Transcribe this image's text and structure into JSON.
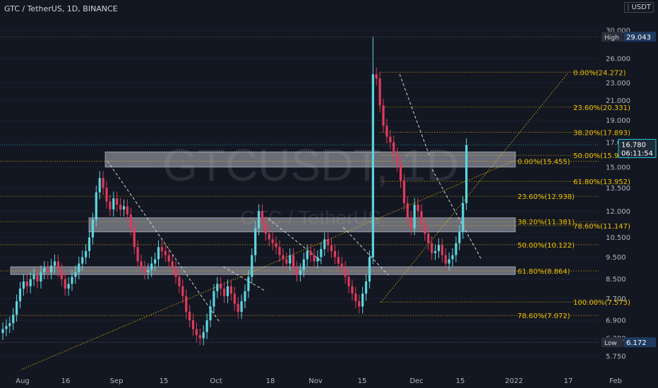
{
  "header": {
    "title": "GTC / TetherUS, 1D, BINANCE"
  },
  "price_unit": "USDT",
  "watermark": {
    "big": "GTCUSDT, 1D",
    "small": "GTC / TetherUS"
  },
  "colors": {
    "bg": "#131722",
    "up": "#5dd6e0",
    "down": "#e03a5b",
    "fib": "#f0c000",
    "zone": "#b2b5be",
    "text": "#d1d4dc",
    "badge": "#1e3a5f",
    "current": "#26c6da"
  },
  "chart_data": {
    "type": "candlestick",
    "y_scale": "log",
    "y_ticks": [
      "30.000",
      "26.000",
      "23.000",
      "21.000",
      "19.000",
      "17.000",
      "15.000",
      "13.500",
      "12.000",
      "10.500",
      "9.500",
      "8.500",
      "7.700",
      "6.900",
      "6.300",
      "5.750"
    ],
    "x_ticks": [
      "Aug",
      "16",
      "Sep",
      "15",
      "Oct",
      "18",
      "Nov",
      "15",
      "Dec",
      "15",
      "2022",
      "17",
      "Feb"
    ],
    "badges": {
      "high": {
        "label": "High",
        "value": "29.043"
      },
      "low": {
        "label": "Low",
        "value": "6.172"
      },
      "current": {
        "price": "16.780",
        "countdown": "06:11:54"
      }
    },
    "fib_labels": [
      {
        "text": "0.00%(24.272)",
        "value": 24.272
      },
      {
        "text": "23.60%(20.331)",
        "value": 20.331
      },
      {
        "text": "38.20%(17.893)",
        "value": 17.893
      },
      {
        "text": "50.00%(15.923)",
        "value": 15.923
      },
      {
        "text": "0.00%(15.455)",
        "value": 15.455
      },
      {
        "text": "61.80%(13.952)",
        "value": 13.952
      },
      {
        "text": "23.60%(12.938)",
        "value": 12.938
      },
      {
        "text": "38.20%(11.381)",
        "value": 11.381
      },
      {
        "text": "78.60%(11.147)",
        "value": 11.147
      },
      {
        "text": "50.00%(10.122)",
        "value": 10.122
      },
      {
        "text": "61.80%(8.864)",
        "value": 8.864
      },
      {
        "text": "100.00%(7.573)",
        "value": 7.573
      },
      {
        "text": "78.60%(7.072)",
        "value": 7.072
      }
    ],
    "zones": [
      {
        "low": 15.0,
        "high": 16.2
      },
      {
        "low": 10.8,
        "high": 11.6
      },
      {
        "low": 8.7,
        "high": 9.05
      }
    ],
    "closes": [
      6.6,
      6.7,
      6.8,
      7.1,
      7.6,
      8.1,
      8.4,
      8.2,
      8.5,
      8.7,
      8.4,
      8.8,
      9.0,
      8.8,
      9.1,
      9.3,
      8.9,
      8.5,
      8.1,
      8.3,
      8.6,
      8.8,
      9.2,
      9.5,
      9.8,
      10.5,
      11.5,
      13.2,
      14.2,
      13.5,
      12.6,
      12.1,
      12.8,
      12.4,
      12.1,
      12.3,
      11.8,
      11.0,
      10.0,
      9.3,
      9.0,
      8.8,
      8.9,
      9.2,
      9.4,
      10.0,
      9.8,
      9.6,
      9.3,
      9.0,
      8.6,
      8.2,
      7.8,
      7.2,
      6.9,
      6.6,
      6.4,
      6.3,
      6.5,
      6.9,
      7.4,
      8.0,
      8.3,
      8.1,
      7.8,
      8.2,
      7.9,
      7.5,
      7.2,
      7.6,
      8.0,
      8.6,
      9.6,
      11.0,
      12.0,
      11.3,
      10.7,
      10.4,
      10.2,
      10.0,
      9.6,
      9.4,
      9.2,
      9.6,
      9.0,
      8.7,
      8.9,
      9.4,
      9.8,
      9.6,
      9.3,
      9.5,
      9.9,
      10.4,
      10.1,
      9.8,
      9.5,
      9.2,
      9.0,
      8.6,
      8.2,
      7.9,
      7.6,
      7.4,
      7.9,
      8.4,
      9.5,
      24.0,
      23.5,
      20.5,
      18.5,
      17.5,
      17.0,
      16.0,
      15.2,
      14.0,
      12.5,
      11.6,
      11.0,
      12.4,
      12.0,
      11.2,
      10.7,
      10.2,
      9.7,
      9.8,
      10.1,
      9.6,
      9.2,
      9.4,
      9.6,
      10.2,
      10.8,
      12.5,
      16.78
    ]
  }
}
